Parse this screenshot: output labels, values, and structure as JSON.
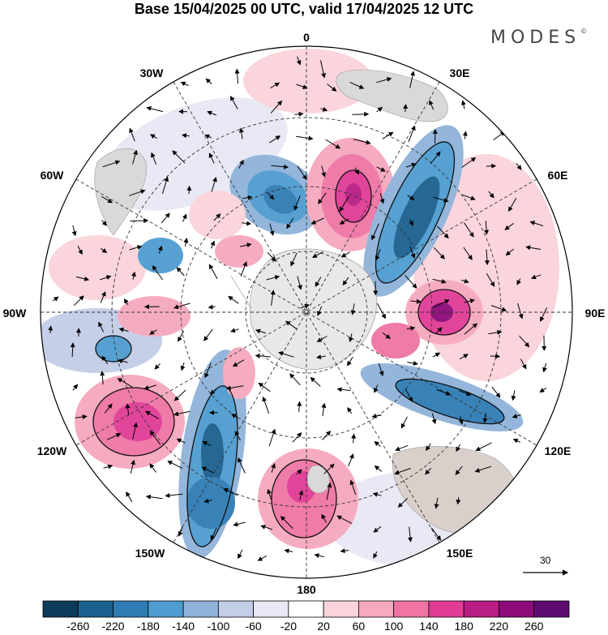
{
  "header": {
    "title": "Base 15/04/2025 00 UTC, valid 17/04/2025 12 UTC",
    "brand": "MODES",
    "brand_mark": "©"
  },
  "map": {
    "projection": "south polar stereographic",
    "longitude_labels": {
      "top": "0",
      "top_right": "30E",
      "right_upper": "60E",
      "right": "90E",
      "right_lower": "120E",
      "bottom_right": "150E",
      "bottom": "180",
      "bottom_left": "150W",
      "left_lower": "120W",
      "left": "90W",
      "left_upper": "60W",
      "top_left": "30W"
    },
    "vector_reference": {
      "value": "30"
    },
    "colors": {
      "land": "#d9d9d9",
      "antarctica": "#e8e8e8",
      "ocean": "#ffffff"
    }
  },
  "colorbar": {
    "labels": [
      "-260",
      "-220",
      "-180",
      "-140",
      "-100",
      "-60",
      "-20",
      "20",
      "60",
      "100",
      "140",
      "180",
      "220",
      "260"
    ],
    "colors": [
      "#0d3b5a",
      "#1b5f8e",
      "#2f7cb4",
      "#4f9cd0",
      "#8fb3da",
      "#c2cde7",
      "#e7e8f4",
      "#ffffff",
      "#fad3da",
      "#f6a8bd",
      "#ef74a4",
      "#e03c95",
      "#b71d83",
      "#8c0a79",
      "#5f0a72"
    ]
  }
}
